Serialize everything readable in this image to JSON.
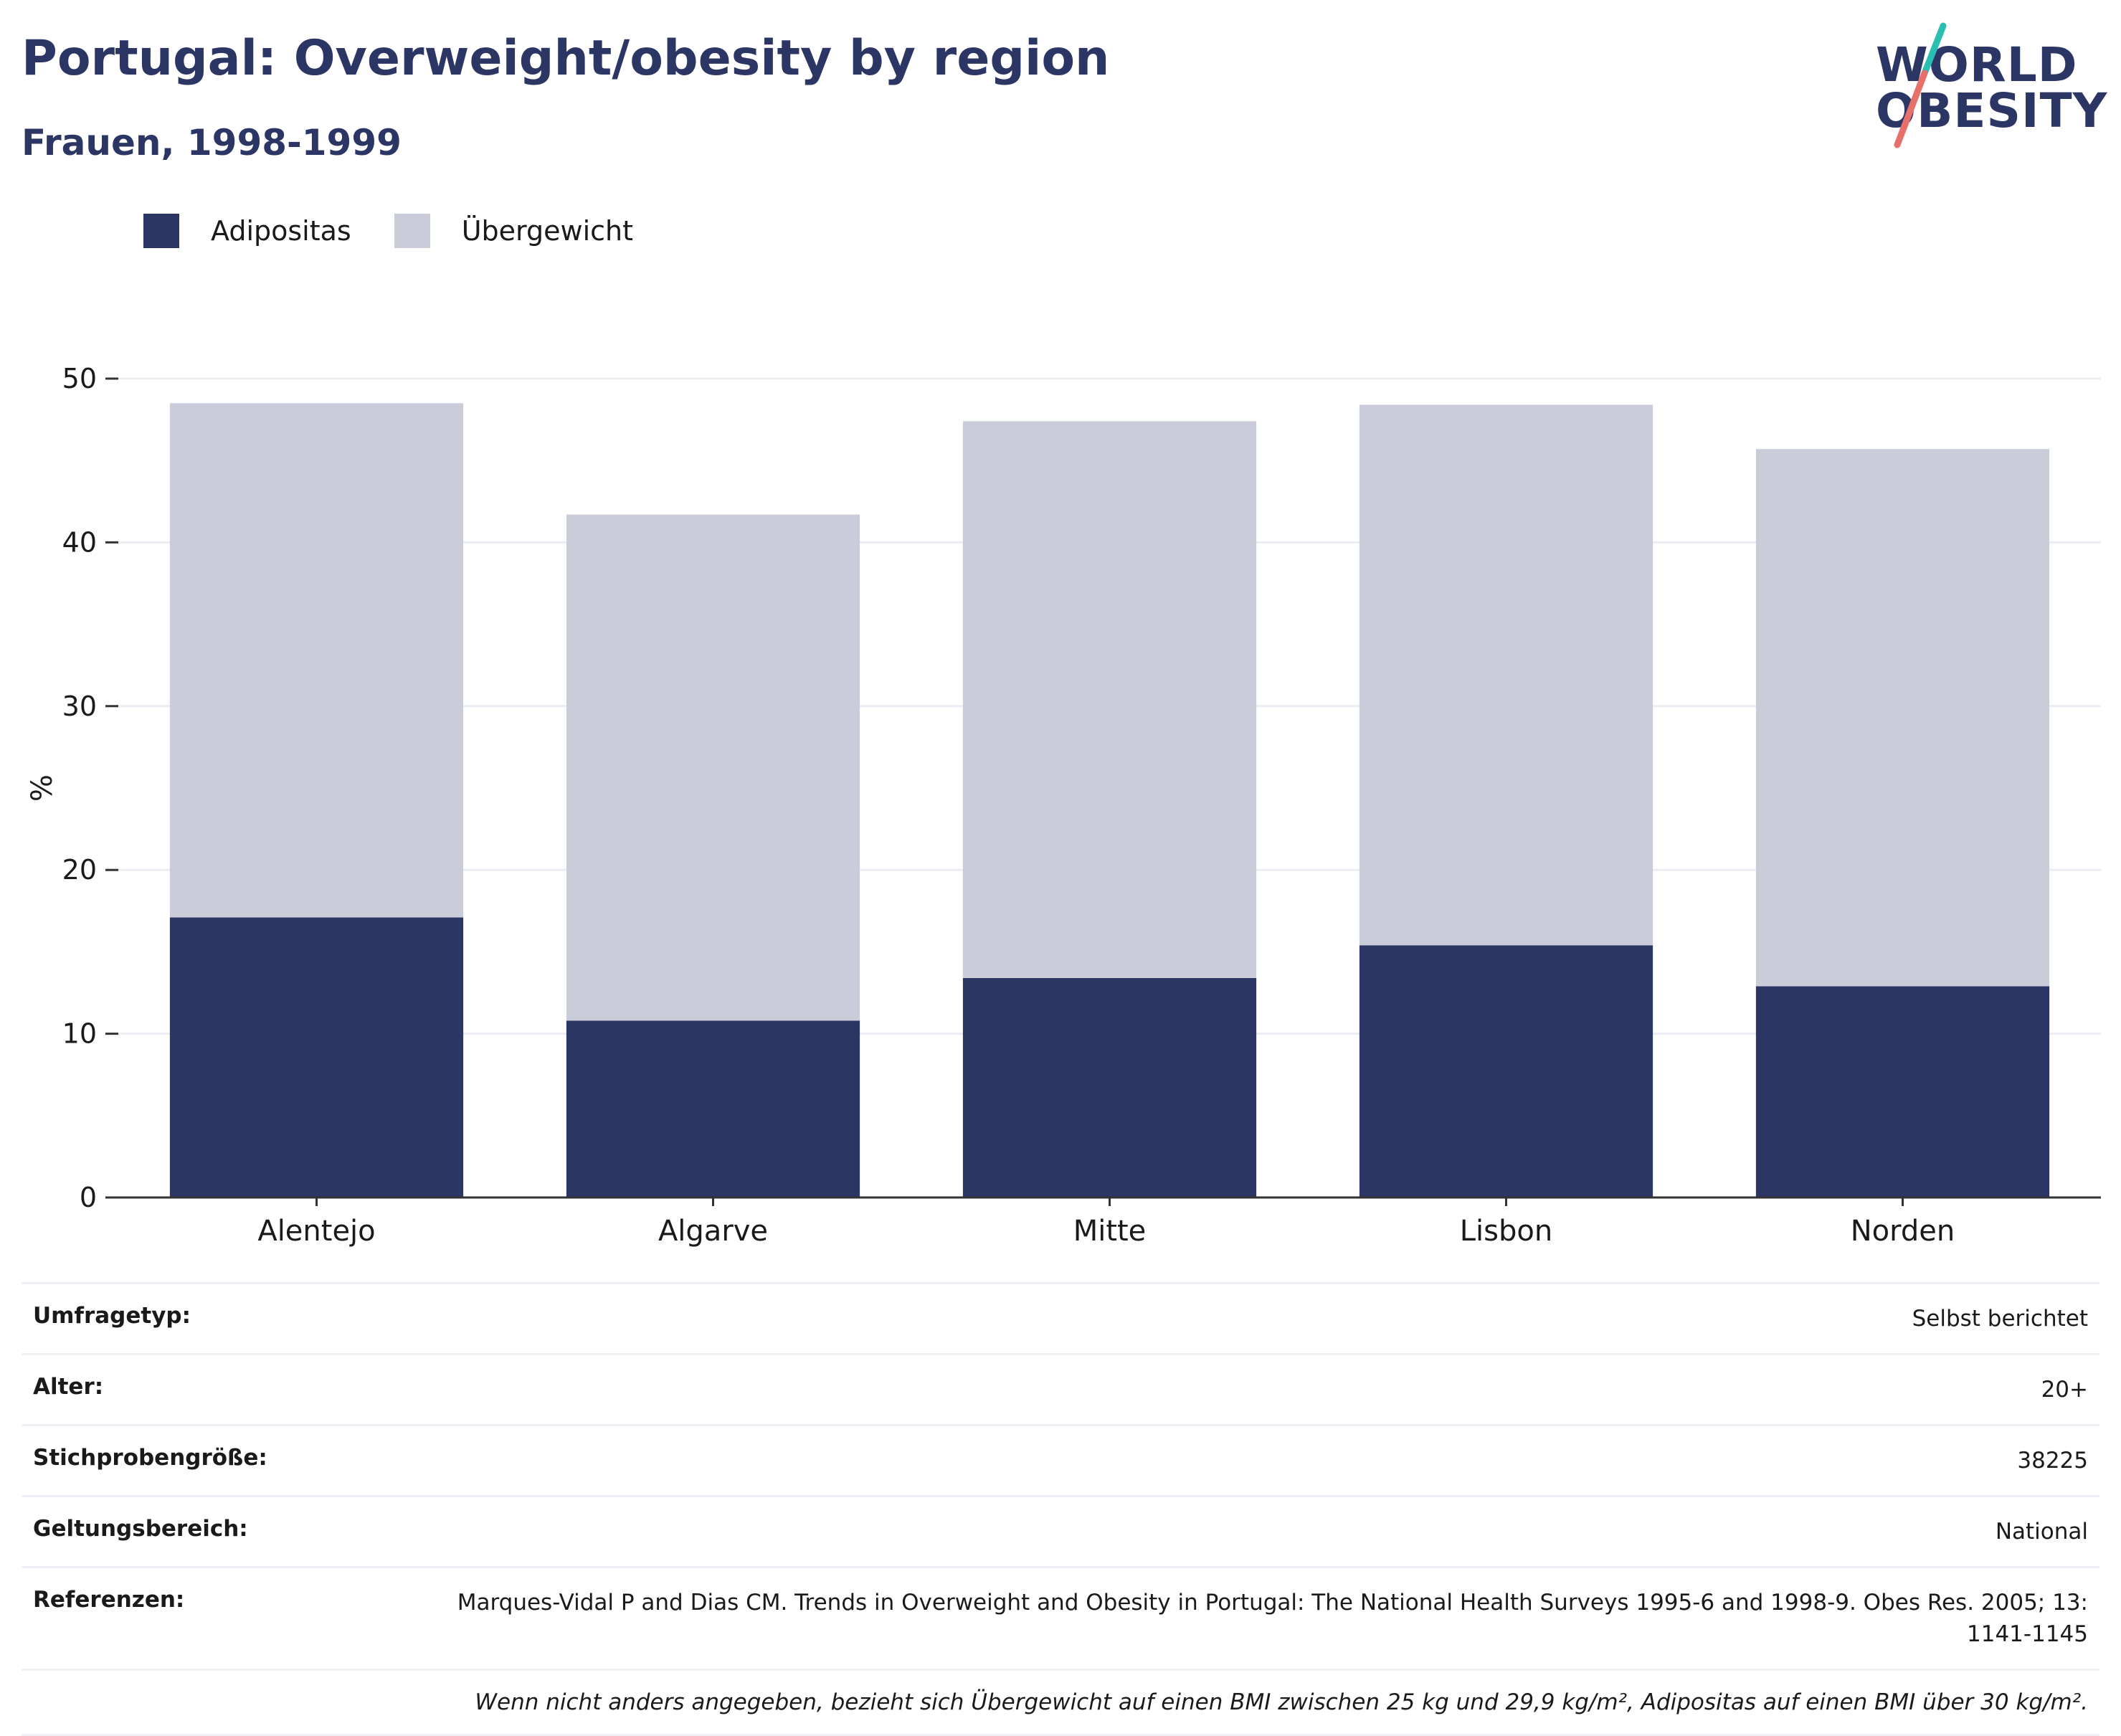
{
  "header": {
    "title": "Portugal: Overweight/obesity by region",
    "subtitle": "Frauen, 1998-1999"
  },
  "logo": {
    "line1": "WORLD",
    "line2": "OBESITY"
  },
  "colors": {
    "obesity": "#2b3664",
    "overweight": "#cacdd9",
    "axis": "#333333",
    "grid": "#ebedf2"
  },
  "chart_data": {
    "type": "bar",
    "stacked": true,
    "categories": [
      "Alentejo",
      "Algarve",
      "Mitte",
      "Lisbon",
      "Norden"
    ],
    "series": [
      {
        "name": "Adipositas",
        "values": [
          17.1,
          10.8,
          13.4,
          15.4,
          12.9
        ]
      },
      {
        "name": "Übergewicht",
        "values": [
          31.4,
          30.9,
          34.0,
          33.0,
          32.8
        ]
      }
    ],
    "ylabel": "%",
    "xlabel": "",
    "ylim": [
      0,
      50
    ],
    "yticks": [
      0,
      10,
      20,
      30,
      40,
      50
    ],
    "grid": true,
    "legend": "top-left"
  },
  "info": {
    "rows": [
      {
        "label": "Umfragetyp:",
        "value": "Selbst berichtet"
      },
      {
        "label": "Alter:",
        "value": "20+"
      },
      {
        "label": "Stichprobengröße:",
        "value": "38225"
      },
      {
        "label": "Geltungsbereich:",
        "value": "National"
      },
      {
        "label": "Referenzen:",
        "value": "Marques-Vidal P and Dias CM. Trends in Overweight and Obesity in Portugal: The National Health Surveys 1995-6 and 1998-9. Obes Res. 2005; 13: 1141-1145"
      }
    ],
    "note": "Wenn nicht anders angegeben, bezieht sich Übergewicht auf einen BMI zwischen 25 kg und 29,9 kg/m², Adipositas auf einen BMI über 30 kg/m²."
  }
}
